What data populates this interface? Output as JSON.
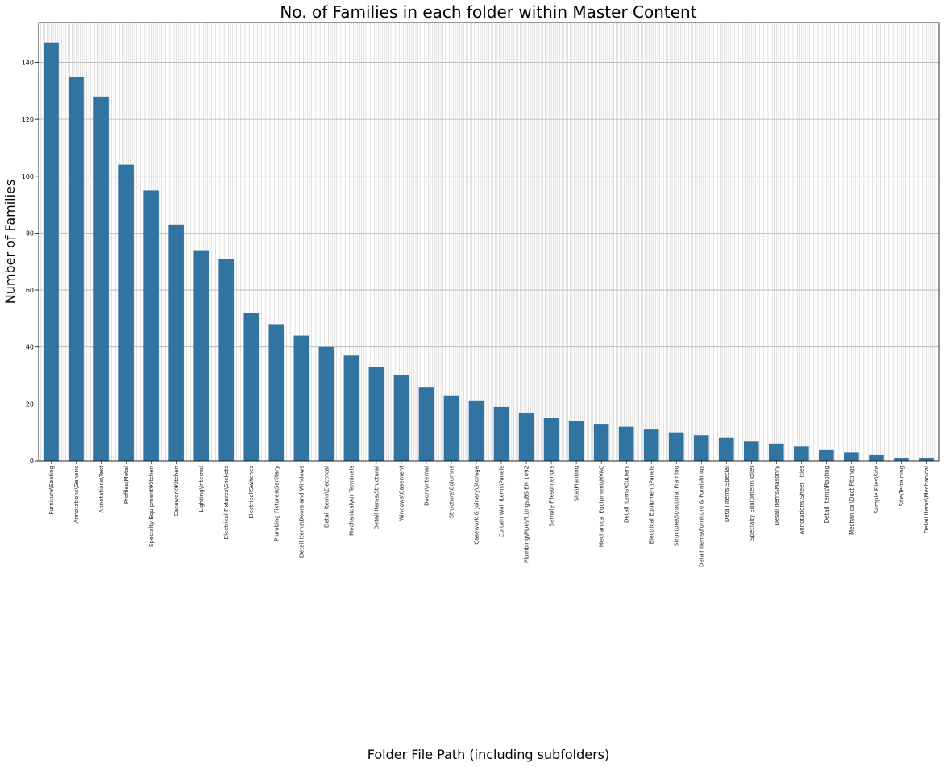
{
  "chart_data": {
    "type": "bar",
    "title": "No. of Families in each folder within Master Content",
    "xlabel": "Folder File Path (including subfolders)",
    "ylabel": "Number of Families",
    "ylim": [
      0,
      154
    ],
    "yticks": [
      0,
      20,
      40,
      60,
      80,
      100,
      120,
      140
    ],
    "grid": true,
    "bar_color": "#3274a1",
    "categories": [
      "Furniture\\Seating",
      "Annotations\\Generic",
      "Annotations\\Text",
      "Profiles\\Metal",
      "Specialty Equipment\\Kitchen",
      "Casework\\Kitchen",
      "Lighting\\Internal",
      "Electrical Fixtures\\Sockets",
      "Electrical\\Switches",
      "Plumbing Fixtures\\Sanitary",
      "Detail Items\\Doors and Windows",
      "Detail Items\\Electrical",
      "Mechanical\\Air Terminals",
      "Detail Items\\Structural",
      "Windows\\Casement",
      "Doors\\Internal",
      "Structure\\Columns",
      "Casework & Joinery\\Storage",
      "Curtain Wall Items\\Panels",
      "Plumbing\\Pipe\\Fittings\\BS EN 1092",
      "Sample Files\\Interiors",
      "Site\\Planting",
      "Mechanical Equipment\\HVAC",
      "Detail Items\\Gutters",
      "Electrical Equipment\\Panels",
      "Structure\\Structural Framing",
      "Detail Items\\Furniture & Furnishings",
      "Detail Items\\Special",
      "Specialty Equipment\\Toilet",
      "Detail Items\\Masonry",
      "Annotations\\Sheet Titles",
      "Detail Items\\Roofing",
      "Mechanical\\Duct Fittings",
      "Sample Files\\Site",
      "Site\\Terraining",
      "Detail Items\\Mechanical"
    ],
    "values": [
      147,
      135,
      128,
      104,
      95,
      83,
      74,
      71,
      52,
      48,
      44,
      40,
      37,
      33,
      30,
      26,
      23,
      21,
      19,
      17,
      15,
      14,
      13,
      12,
      11,
      10,
      9,
      8,
      7,
      6,
      5,
      4,
      3,
      2,
      1,
      1
    ]
  }
}
